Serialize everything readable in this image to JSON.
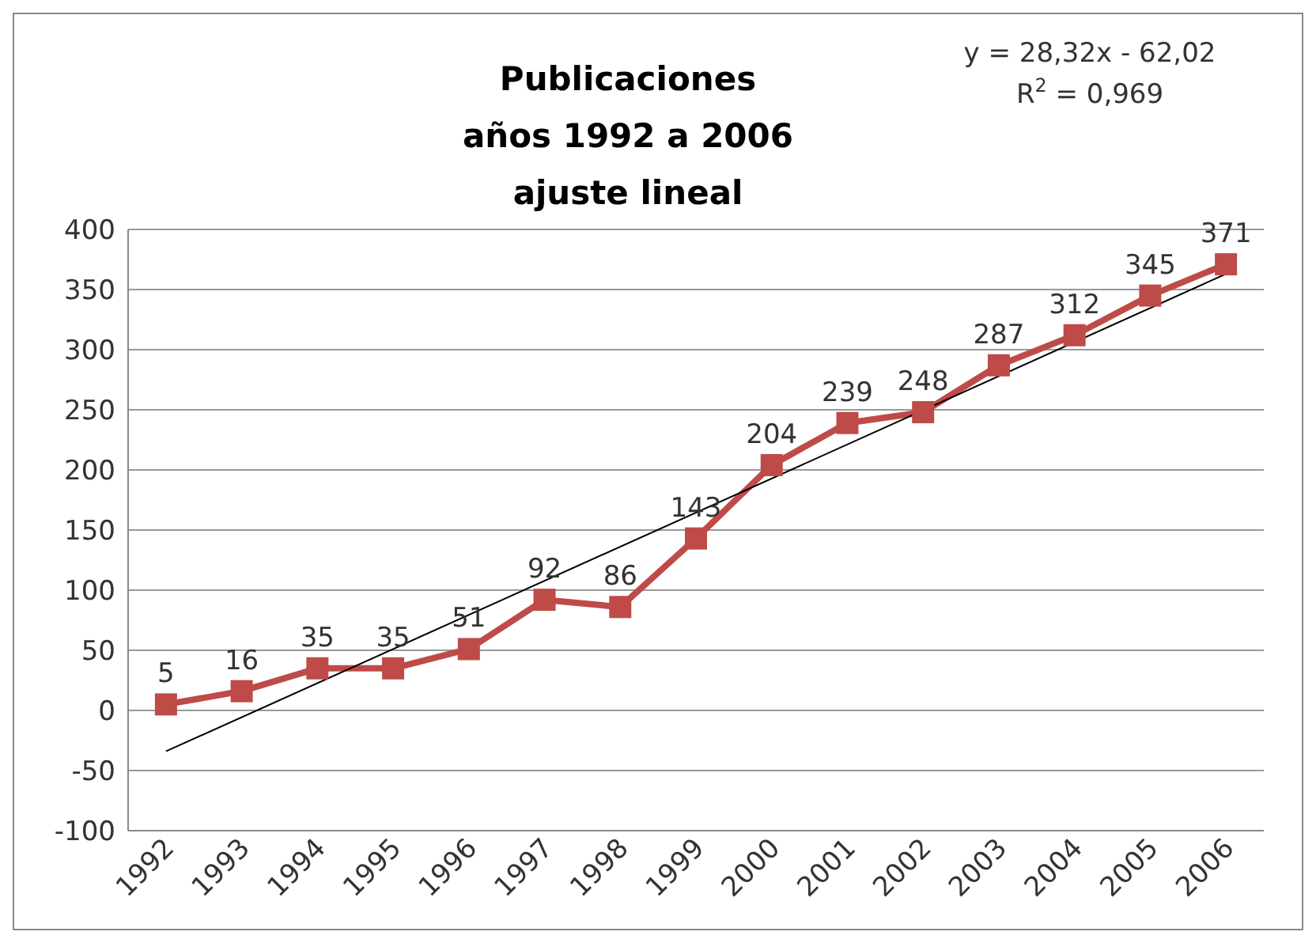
{
  "chart_data": {
    "type": "line",
    "title": "Publicaciones\naños 1992 a 2006\najuste lineal",
    "categories": [
      "1992",
      "1993",
      "1994",
      "1995",
      "1996",
      "1997",
      "1998",
      "1999",
      "2000",
      "2001",
      "2002",
      "2003",
      "2004",
      "2005",
      "2006"
    ],
    "series": [
      {
        "color": "#be4b48",
        "values": [
          5,
          16,
          35,
          35,
          51,
          92,
          86,
          143,
          204,
          239,
          248,
          287,
          312,
          345,
          371
        ],
        "marker": "square",
        "data_labels": true
      },
      {
        "type": "line",
        "color": "#000000",
        "values": [
          -34,
          null,
          null,
          null,
          null,
          null,
          null,
          null,
          null,
          null,
          null,
          null,
          null,
          null,
          363
        ],
        "marker": "none"
      }
    ],
    "annotations": [
      "y = 28,32x - 62,02",
      "R$^{2}$ = 0,969"
    ],
    "ylim": [
      -100,
      400
    ],
    "yticks": [
      -100,
      -50,
      0,
      50,
      100,
      150,
      200,
      250,
      300,
      350,
      400
    ],
    "grid": "y"
  }
}
